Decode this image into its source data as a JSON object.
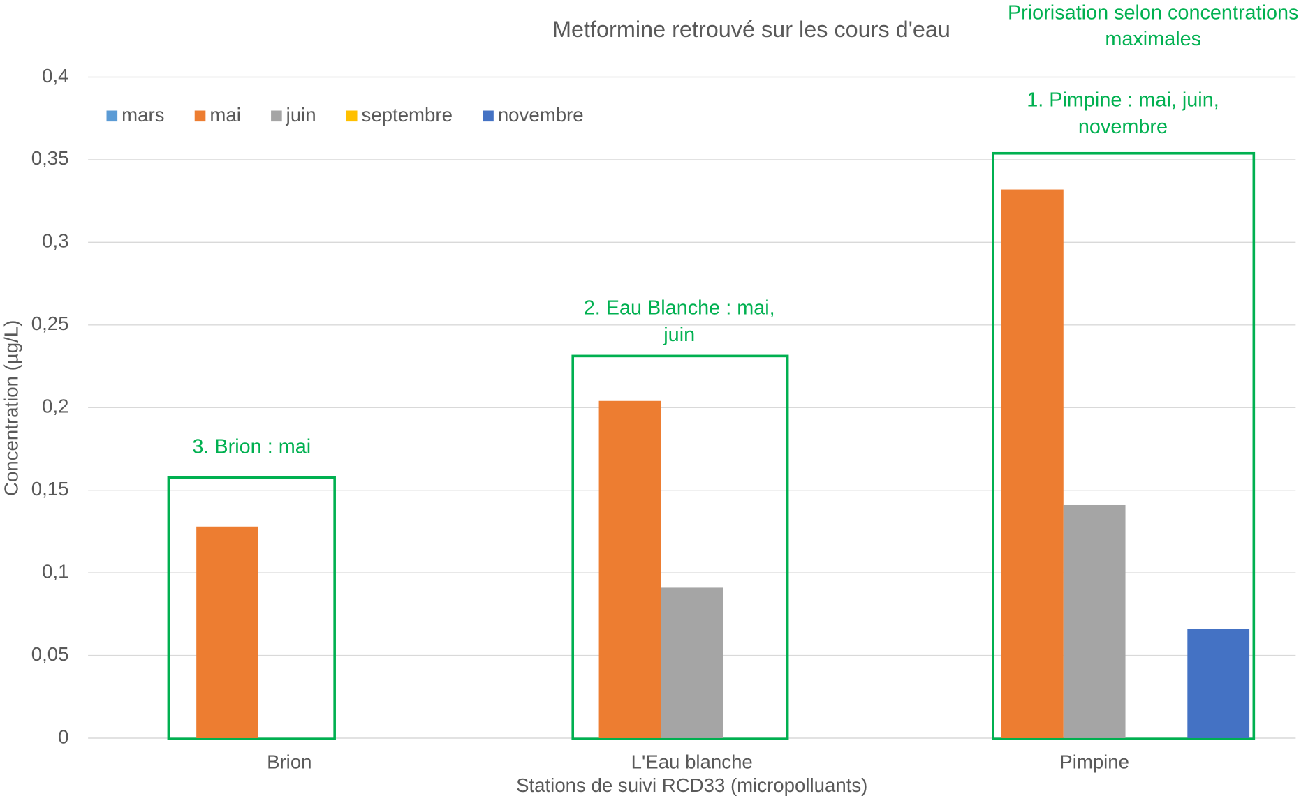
{
  "chart_data": {
    "type": "bar",
    "title": "Metformine retrouvé sur les cours d'eau",
    "xlabel": "Stations de suivi RCD33 (micropolluants)",
    "ylabel": "Concentration (µg/L)",
    "categories": [
      "Brion",
      "L'Eau blanche",
      "Pimpine"
    ],
    "series": [
      {
        "name": "mars",
        "color": "#5b9bd5",
        "values": [
          null,
          null,
          null
        ]
      },
      {
        "name": "mai",
        "color": "#ed7d31",
        "values": [
          0.128,
          0.204,
          0.332
        ]
      },
      {
        "name": "juin",
        "color": "#a5a5a5",
        "values": [
          null,
          0.091,
          0.141
        ]
      },
      {
        "name": "septembre",
        "color": "#ffc000",
        "values": [
          null,
          null,
          null
        ]
      },
      {
        "name": "novembre",
        "color": "#4472c4",
        "values": [
          null,
          null,
          0.066
        ]
      }
    ],
    "ylim": [
      0,
      0.4
    ],
    "yticks": [
      0,
      {
        "value": 0.05,
        "label": "0,05"
      },
      {
        "value": 0.1,
        "label": "0,1"
      },
      {
        "value": 0.15,
        "label": "0,15"
      },
      {
        "value": 0.2,
        "label": "0,2"
      },
      {
        "value": 0.25,
        "label": "0,25"
      },
      {
        "value": 0.3,
        "label": "0,3"
      },
      {
        "value": 0.35,
        "label": "0,35"
      },
      {
        "value": 0.4,
        "label": "0,4"
      }
    ],
    "grid": true,
    "legend": "top-left",
    "annotation_title": "Priorisation selon concentrations maximales",
    "annotations": [
      "3. Brion : mai",
      "2. Eau Blanche : mai, juin",
      "1. Pimpine : mai, juin, novembre"
    ],
    "annotation_color": "#00b050"
  }
}
